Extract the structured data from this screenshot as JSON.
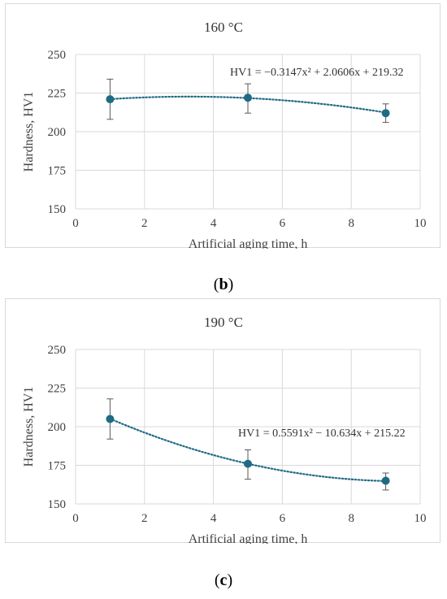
{
  "colors": {
    "series": "#1f6b85",
    "errorbar": "#595959",
    "grid": "#d9d9d9",
    "text": "#404040"
  },
  "chart_data": [
    {
      "type": "scatter",
      "title": "160 °C",
      "xlabel": "Artificial aging time, h",
      "ylabel": "Hardness, HV1",
      "xlim": [
        0,
        10
      ],
      "ylim": [
        150,
        250
      ],
      "xticks": [
        "0",
        "2",
        "4",
        "6",
        "8",
        "10"
      ],
      "yticks": [
        "150",
        "175",
        "200",
        "225",
        "250"
      ],
      "grid": true,
      "points": [
        {
          "x": 1,
          "y": 221,
          "err_low": 208,
          "err_high": 234
        },
        {
          "x": 5,
          "y": 222,
          "err_low": 212,
          "err_high": 231
        },
        {
          "x": 9,
          "y": 212,
          "err_low": 206,
          "err_high": 218
        }
      ],
      "trendline": {
        "type": "polynomial",
        "order": 2,
        "a": -0.3147,
        "b": 2.0606,
        "c": 219.32,
        "equation": "HV1 = −0.3147x² + 2.0606x + 219.32"
      }
    },
    {
      "type": "scatter",
      "title": "190 °C",
      "xlabel": "Artificial aging time, h",
      "ylabel": "Hardness, HV1",
      "xlim": [
        0,
        10
      ],
      "ylim": [
        150,
        250
      ],
      "xticks": [
        "0",
        "2",
        "4",
        "6",
        "8",
        "10"
      ],
      "yticks": [
        "150",
        "175",
        "200",
        "225",
        "250"
      ],
      "grid": true,
      "points": [
        {
          "x": 1,
          "y": 205,
          "err_low": 192,
          "err_high": 218
        },
        {
          "x": 5,
          "y": 176,
          "err_low": 166,
          "err_high": 185
        },
        {
          "x": 9,
          "y": 165,
          "err_low": 159,
          "err_high": 170
        }
      ],
      "trendline": {
        "type": "polynomial",
        "order": 2,
        "a": 0.5591,
        "b": -10.634,
        "c": 215.22,
        "equation": "HV1 = 0.5591x² − 10.634x + 215.22"
      }
    }
  ],
  "captions": [
    {
      "open": "(",
      "letter": "b",
      "close": ")"
    },
    {
      "open": "(",
      "letter": "c",
      "close": ")"
    }
  ]
}
